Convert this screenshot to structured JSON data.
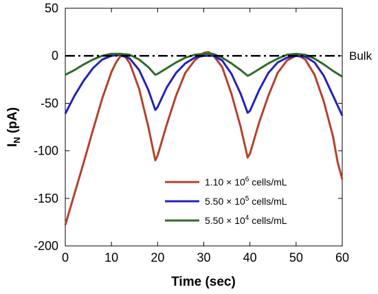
{
  "chart_data": {
    "type": "line",
    "xlabel": "Time (sec)",
    "ylabel": {
      "main": "I",
      "sub": "N",
      "unit": " (pA)"
    },
    "xlim": [
      0,
      60
    ],
    "ylim": [
      -200,
      50
    ],
    "xticks": [
      "0",
      "10",
      "20",
      "30",
      "40",
      "50",
      "60"
    ],
    "yticks": [
      "50",
      "0",
      "-50",
      "-100",
      "-150",
      "-200"
    ],
    "grid": false,
    "legend_position": "bottom-right",
    "reference_line": {
      "label": "Bulk",
      "y": 0,
      "style": "dash-dot",
      "color": "#000000"
    },
    "series": [
      {
        "name": {
          "coef": "1.10 ",
          "base": "× 10",
          "exp": "6",
          "unit": " cells/mL"
        },
        "color": "#b5402a",
        "x": [
          0,
          2,
          4,
          6,
          8,
          10,
          11,
          12,
          13,
          14,
          16,
          18,
          19.5,
          20,
          22,
          24,
          26,
          28,
          30,
          31,
          32,
          34,
          36,
          38,
          39.5,
          40,
          42,
          44,
          46,
          48,
          50,
          51,
          52,
          54,
          56,
          58,
          59,
          60
        ],
        "y": [
          -178,
          -145,
          -112,
          -78,
          -45,
          -17,
          -7,
          0,
          -1,
          -8,
          -35,
          -75,
          -110,
          -105,
          -72,
          -42,
          -18,
          -5,
          3,
          4,
          1,
          -12,
          -40,
          -75,
          -107,
          -103,
          -70,
          -42,
          -18,
          -5,
          0,
          -1,
          -4,
          -20,
          -48,
          -85,
          -112,
          -130
        ]
      },
      {
        "name": {
          "coef": "5.50 ",
          "base": "× 10",
          "exp": "5",
          "unit": " cells/mL"
        },
        "color": "#2222bb",
        "x": [
          0,
          2,
          4,
          6,
          8,
          10,
          12,
          14,
          16,
          18,
          19.5,
          20,
          22,
          24,
          26,
          28,
          30,
          32,
          34,
          36,
          38,
          39.5,
          40,
          42,
          44,
          46,
          48,
          50,
          52,
          54,
          56,
          58,
          60
        ],
        "y": [
          -61,
          -42,
          -26,
          -13,
          -4,
          0,
          1,
          -3,
          -15,
          -36,
          -57,
          -54,
          -33,
          -18,
          -8,
          -2,
          0,
          0,
          -5,
          -19,
          -40,
          -60,
          -58,
          -36,
          -18,
          -7,
          -2,
          0,
          -1,
          -7,
          -21,
          -42,
          -63
        ]
      },
      {
        "name": {
          "coef": "5.50 ",
          "base": "× 10",
          "exp": "4",
          "unit": " cells/mL"
        },
        "color": "#2e6b2a",
        "x": [
          0,
          2,
          4,
          6,
          8,
          10,
          12,
          14,
          16,
          18,
          19.5,
          20,
          22,
          24,
          26,
          28,
          30,
          32,
          34,
          36,
          38,
          39.5,
          40,
          42,
          44,
          46,
          48,
          50,
          52,
          54,
          56,
          58,
          60
        ],
        "y": [
          -20,
          -15,
          -9,
          -4,
          0,
          2,
          2,
          1,
          -4,
          -12,
          -20,
          -19,
          -13,
          -7,
          -2,
          1,
          2,
          2,
          -2,
          -8,
          -15,
          -21,
          -20,
          -14,
          -8,
          -3,
          1,
          2,
          1,
          -3,
          -9,
          -16,
          -22
        ]
      }
    ]
  }
}
